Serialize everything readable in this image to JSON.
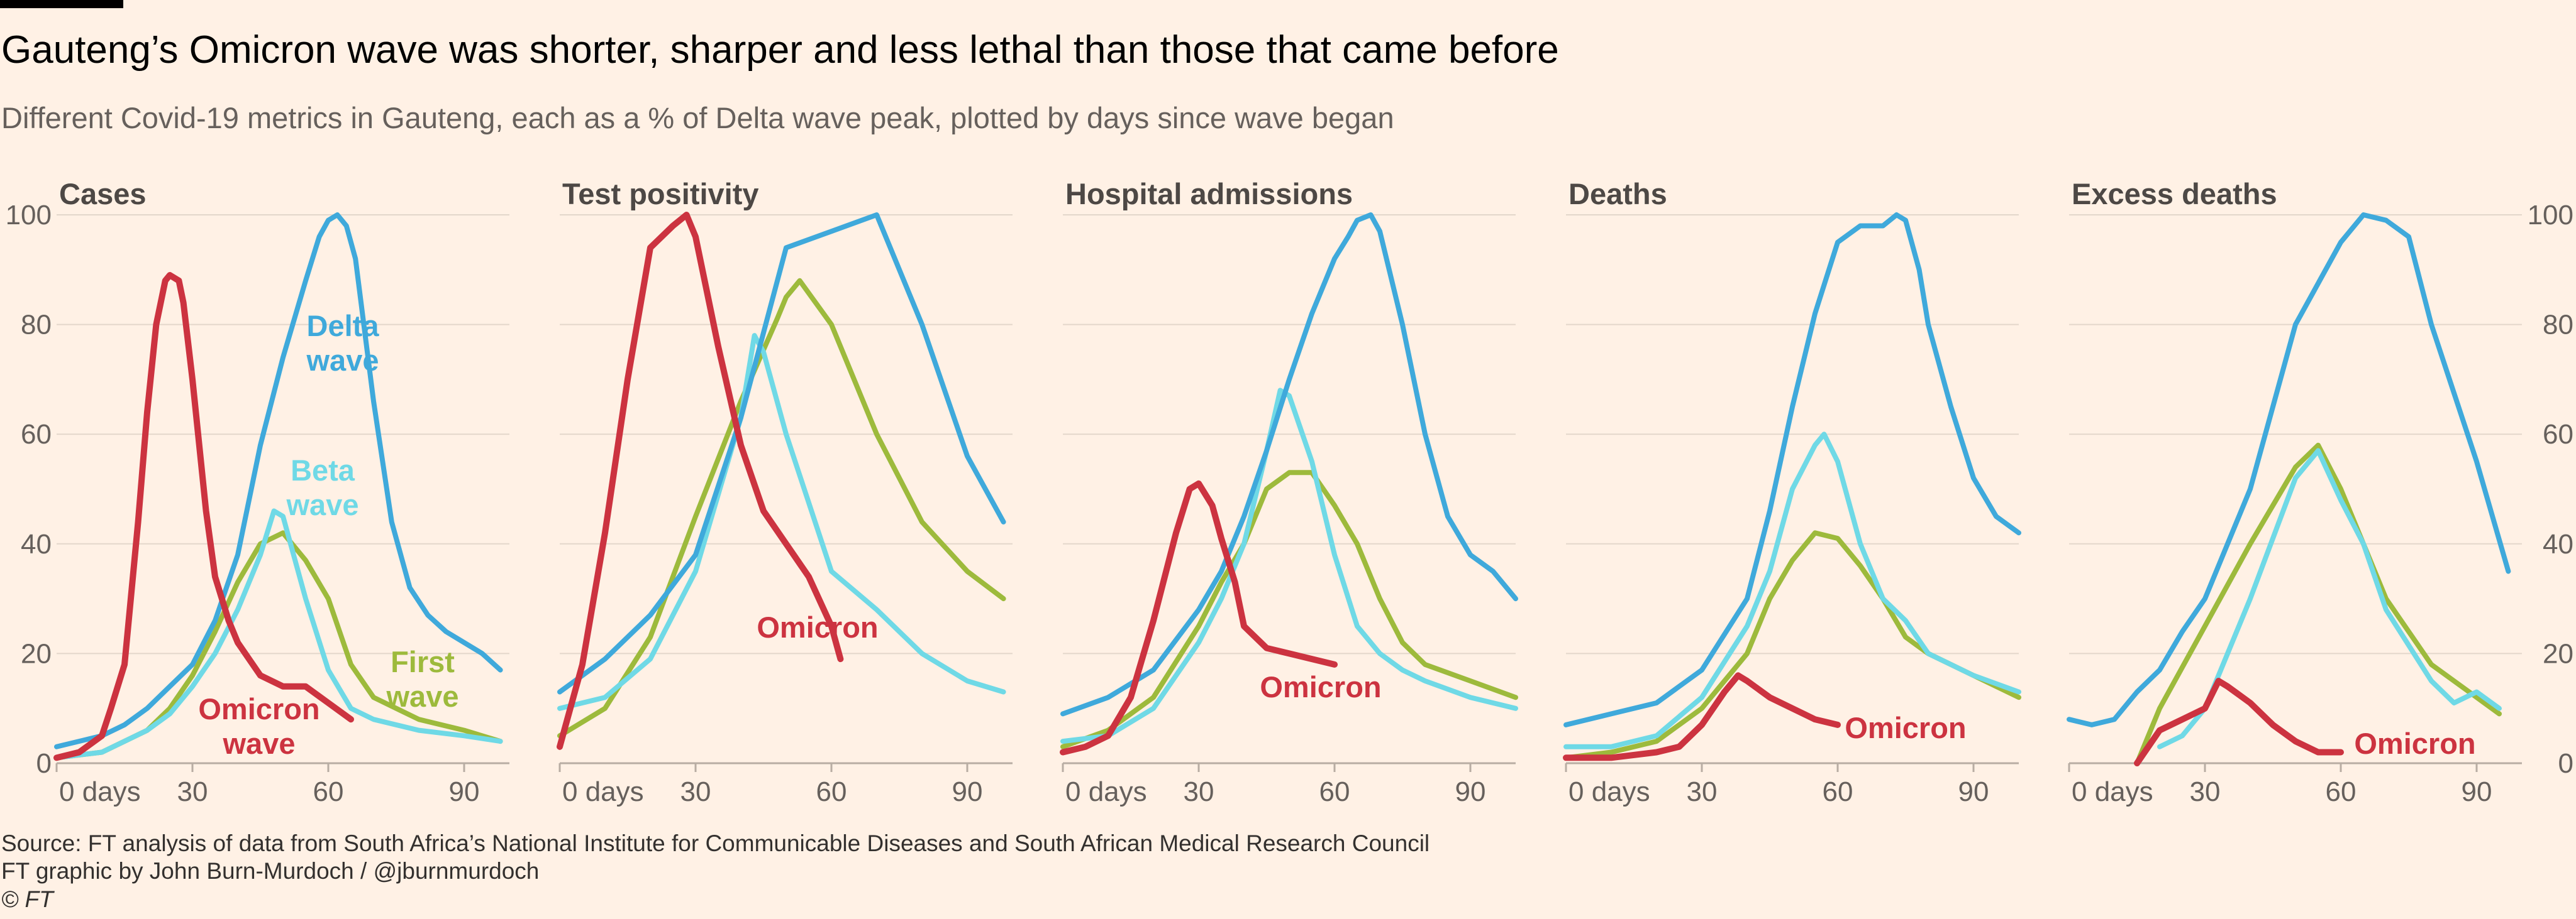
{
  "header": {
    "title": "Gauteng’s Omicron wave was shorter, sharper and less lethal than those that came before",
    "subtitle": "Different Covid-19 metrics in Gauteng, each as a % of Delta wave peak, plotted by days since wave began"
  },
  "footer": {
    "source": "Source: FT analysis of data from South Africa’s National Institute for Communicable Diseases and South African Medical Research Council",
    "credit": "FT graphic by John Burn-Murdoch / @jburnmurdoch",
    "copyright": "© FT"
  },
  "colors": {
    "delta": "#3FA9DB",
    "beta": "#6FD9E6",
    "first": "#9DBA3C",
    "omicron": "#CC3340",
    "grid": "#E3D7CB",
    "axis": "#66605C",
    "background": "#FFF1E5"
  },
  "chart_data": [
    {
      "type": "line",
      "title": "Cases",
      "xlim": [
        0,
        100
      ],
      "ylim": [
        0,
        100
      ],
      "x_ticks": [
        0,
        30,
        60,
        90
      ],
      "x_tick_labels": [
        "0 days",
        "30",
        "60",
        "90"
      ],
      "y_ticks": [
        0,
        20,
        40,
        60,
        80,
        100
      ],
      "y_tick_labels": [
        "0",
        "20",
        "40",
        "60",
        "80",
        "100"
      ],
      "series": [
        {
          "key": "delta",
          "x": [
            0,
            10,
            15,
            20,
            25,
            30,
            35,
            40,
            45,
            50,
            55,
            58,
            60,
            62,
            64,
            66,
            70,
            74,
            78,
            82,
            86,
            90,
            94,
            98
          ],
          "y": [
            3,
            5,
            7,
            10,
            14,
            18,
            26,
            38,
            58,
            74,
            88,
            96,
            99,
            100,
            98,
            92,
            66,
            44,
            32,
            27,
            24,
            22,
            20,
            17
          ]
        },
        {
          "key": "beta",
          "x": [
            0,
            10,
            20,
            25,
            30,
            35,
            40,
            45,
            48,
            50,
            55,
            60,
            65,
            70,
            80,
            90,
            98
          ],
          "y": [
            1,
            2,
            6,
            9,
            14,
            20,
            28,
            38,
            46,
            45,
            30,
            17,
            10,
            8,
            6,
            5,
            4
          ]
        },
        {
          "key": "first",
          "x": [
            0,
            10,
            20,
            25,
            30,
            35,
            40,
            45,
            50,
            55,
            60,
            65,
            70,
            80,
            90,
            98
          ],
          "y": [
            1,
            2,
            6,
            10,
            16,
            24,
            33,
            40,
            42,
            37,
            30,
            18,
            12,
            8,
            6,
            4
          ]
        },
        {
          "key": "omicron",
          "x": [
            0,
            5,
            10,
            12,
            15,
            18,
            20,
            22,
            24,
            25,
            27,
            28,
            30,
            33,
            35,
            38,
            40,
            45,
            50,
            55,
            60,
            65
          ],
          "y": [
            1,
            2,
            5,
            10,
            18,
            44,
            64,
            80,
            88,
            89,
            88,
            84,
            70,
            46,
            34,
            26,
            22,
            16,
            14,
            14,
            11,
            8
          ]
        }
      ],
      "annotations": [
        {
          "series": "delta",
          "lines": [
            "Delta",
            "wave"
          ]
        },
        {
          "series": "beta",
          "lines": [
            "Beta",
            "wave"
          ]
        },
        {
          "series": "first",
          "lines": [
            "First",
            "wave"
          ]
        },
        {
          "series": "omicron",
          "lines": [
            "Omicron",
            "wave"
          ]
        }
      ]
    },
    {
      "type": "line",
      "title": "Test positivity",
      "xlim": [
        0,
        100
      ],
      "ylim": [
        0,
        100
      ],
      "x_ticks": [
        0,
        30,
        60,
        90
      ],
      "x_tick_labels": [
        "0 days",
        "30",
        "60",
        "90"
      ],
      "series": [
        {
          "key": "delta",
          "x": [
            0,
            10,
            20,
            30,
            40,
            50,
            60,
            70,
            80,
            90,
            98
          ],
          "y": [
            13,
            19,
            27,
            38,
            63,
            94,
            97,
            100,
            80,
            56,
            44
          ]
        },
        {
          "key": "beta",
          "x": [
            0,
            10,
            20,
            30,
            40,
            43,
            45,
            50,
            60,
            70,
            80,
            90,
            98
          ],
          "y": [
            10,
            12,
            19,
            35,
            63,
            78,
            75,
            60,
            35,
            28,
            20,
            15,
            13
          ]
        },
        {
          "key": "first",
          "x": [
            0,
            10,
            20,
            30,
            40,
            48,
            50,
            53,
            60,
            70,
            80,
            90,
            98
          ],
          "y": [
            5,
            10,
            23,
            45,
            66,
            81,
            85,
            88,
            80,
            60,
            44,
            35,
            30
          ]
        },
        {
          "key": "omicron",
          "x": [
            0,
            5,
            10,
            15,
            20,
            25,
            28,
            30,
            35,
            40,
            45,
            50,
            55,
            60,
            62
          ],
          "y": [
            3,
            18,
            42,
            70,
            94,
            98,
            100,
            96,
            76,
            58,
            46,
            40,
            34,
            25,
            19
          ]
        }
      ],
      "annotations": [
        {
          "series": "omicron",
          "lines": [
            "Omicron"
          ]
        }
      ]
    },
    {
      "type": "line",
      "title": "Hospital admissions",
      "xlim": [
        0,
        100
      ],
      "ylim": [
        0,
        100
      ],
      "x_ticks": [
        0,
        30,
        60,
        90
      ],
      "x_tick_labels": [
        "0 days",
        "30",
        "60",
        "90"
      ],
      "series": [
        {
          "key": "delta",
          "x": [
            0,
            10,
            20,
            30,
            35,
            40,
            45,
            50,
            55,
            60,
            63,
            65,
            68,
            70,
            75,
            80,
            85,
            90,
            95,
            100
          ],
          "y": [
            9,
            12,
            17,
            28,
            35,
            45,
            57,
            70,
            82,
            92,
            96,
            99,
            100,
            97,
            80,
            60,
            45,
            38,
            35,
            30
          ]
        },
        {
          "key": "beta",
          "x": [
            0,
            10,
            20,
            30,
            35,
            40,
            45,
            48,
            50,
            55,
            60,
            65,
            70,
            75,
            80,
            90,
            100
          ],
          "y": [
            4,
            5,
            10,
            22,
            30,
            40,
            57,
            68,
            67,
            55,
            38,
            25,
            20,
            17,
            15,
            12,
            10
          ]
        },
        {
          "key": "first",
          "x": [
            0,
            10,
            20,
            30,
            35,
            40,
            45,
            50,
            55,
            60,
            65,
            70,
            75,
            80,
            90,
            100
          ],
          "y": [
            3,
            6,
            12,
            25,
            33,
            40,
            50,
            53,
            53,
            47,
            40,
            30,
            22,
            18,
            15,
            12
          ]
        },
        {
          "key": "omicron",
          "x": [
            0,
            5,
            10,
            15,
            20,
            25,
            28,
            30,
            33,
            35,
            38,
            40,
            45,
            50,
            55,
            60
          ],
          "y": [
            2,
            3,
            5,
            12,
            26,
            42,
            50,
            51,
            47,
            41,
            33,
            25,
            21,
            20,
            19,
            18
          ]
        }
      ],
      "annotations": [
        {
          "series": "omicron",
          "lines": [
            "Omicron"
          ]
        }
      ]
    },
    {
      "type": "line",
      "title": "Deaths",
      "xlim": [
        0,
        100
      ],
      "ylim": [
        0,
        100
      ],
      "x_ticks": [
        0,
        30,
        60,
        90
      ],
      "x_tick_labels": [
        "0 days",
        "30",
        "60",
        "90"
      ],
      "series": [
        {
          "key": "delta",
          "x": [
            0,
            10,
            20,
            30,
            40,
            45,
            50,
            55,
            60,
            65,
            70,
            73,
            75,
            78,
            80,
            85,
            90,
            95,
            100
          ],
          "y": [
            7,
            9,
            11,
            17,
            30,
            46,
            65,
            82,
            95,
            98,
            98,
            100,
            99,
            90,
            80,
            65,
            52,
            45,
            42
          ]
        },
        {
          "key": "beta",
          "x": [
            0,
            10,
            20,
            30,
            40,
            45,
            50,
            55,
            57,
            60,
            65,
            70,
            75,
            80,
            90,
            100
          ],
          "y": [
            3,
            3,
            5,
            12,
            25,
            35,
            50,
            58,
            60,
            55,
            40,
            30,
            26,
            20,
            16,
            13
          ]
        },
        {
          "key": "first",
          "x": [
            0,
            10,
            20,
            30,
            40,
            45,
            50,
            55,
            60,
            65,
            70,
            75,
            80,
            90,
            100
          ],
          "y": [
            1,
            2,
            4,
            10,
            20,
            30,
            37,
            42,
            41,
            36,
            30,
            23,
            20,
            16,
            12
          ]
        },
        {
          "key": "omicron",
          "x": [
            0,
            10,
            20,
            25,
            30,
            35,
            38,
            40,
            45,
            50,
            55,
            60
          ],
          "y": [
            1,
            1,
            2,
            3,
            7,
            13,
            16,
            15,
            12,
            10,
            8,
            7
          ]
        }
      ],
      "annotations": [
        {
          "series": "omicron",
          "lines": [
            "Omicron"
          ]
        }
      ]
    },
    {
      "type": "line",
      "title": "Excess deaths",
      "xlim": [
        0,
        100
      ],
      "ylim": [
        0,
        100
      ],
      "x_ticks": [
        0,
        30,
        60,
        90
      ],
      "x_tick_labels": [
        "0 days",
        "30",
        "60",
        "90"
      ],
      "y_tick_labels": [
        "0",
        "20",
        "40",
        "60",
        "80",
        "100"
      ],
      "series": [
        {
          "key": "delta",
          "x": [
            0,
            5,
            10,
            15,
            20,
            25,
            30,
            40,
            50,
            60,
            65,
            70,
            75,
            80,
            90,
            97
          ],
          "y": [
            8,
            7,
            8,
            13,
            17,
            24,
            30,
            50,
            80,
            95,
            100,
            99,
            96,
            80,
            55,
            35
          ]
        },
        {
          "key": "beta",
          "x": [
            20,
            25,
            30,
            40,
            50,
            55,
            60,
            65,
            70,
            80,
            85,
            90,
            95
          ],
          "y": [
            3,
            5,
            10,
            30,
            52,
            57,
            48,
            40,
            28,
            15,
            11,
            13,
            10
          ]
        },
        {
          "key": "first",
          "x": [
            15,
            20,
            30,
            40,
            50,
            55,
            60,
            70,
            80,
            90,
            95
          ],
          "y": [
            0,
            10,
            25,
            40,
            54,
            58,
            50,
            30,
            18,
            12,
            9
          ]
        },
        {
          "key": "omicron",
          "x": [
            15,
            20,
            25,
            30,
            33,
            35,
            40,
            45,
            50,
            55,
            60
          ],
          "y": [
            0,
            6,
            8,
            10,
            15,
            14,
            11,
            7,
            4,
            2,
            2
          ]
        }
      ],
      "annotations": [
        {
          "series": "omicron",
          "lines": [
            "Omicron"
          ]
        }
      ]
    }
  ]
}
